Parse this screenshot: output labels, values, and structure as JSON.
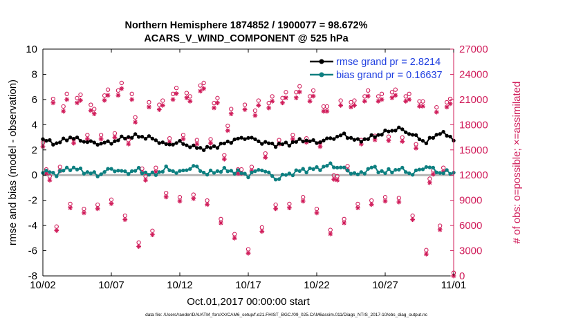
{
  "chart_data": {
    "type": "line",
    "title": "Northern Hemisphere 1874852 / 1900077 = 98.672%",
    "subtitle": "ACARS_V_WIND_COMPONENT @ 525 hPa",
    "xlabel": "Oct.01,2017 00:00:00 start",
    "ylabel_left": "rmse and bias (model - observation)",
    "ylabel_right": "# of obs: o=possible; ×=assimilated",
    "xlim": [
      0,
      30
    ],
    "ylim_left": [
      -8,
      10
    ],
    "ylim_right": [
      0,
      27000
    ],
    "xticks": [
      {
        "value": 1,
        "label": "10/02"
      },
      {
        "value": 6,
        "label": "10/07"
      },
      {
        "value": 11,
        "label": "10/12"
      },
      {
        "value": 16,
        "label": "10/17"
      },
      {
        "value": 21,
        "label": "10/22"
      },
      {
        "value": 26,
        "label": "10/27"
      },
      {
        "value": 31,
        "label": "11/01"
      }
    ],
    "yticks_left": [
      "-8",
      "-6",
      "-4",
      "-2",
      "0",
      "2",
      "4",
      "6",
      "8",
      "10"
    ],
    "yticks_right": [
      "0",
      "3000",
      "6000",
      "9000",
      "12000",
      "15000",
      "18000",
      "21000",
      "24000",
      "27000"
    ],
    "legend": {
      "location": "top-right",
      "rmse_label": "rmse grand pr = 2.8214",
      "bias_label": "bias grand pr = 0.16637"
    },
    "colors": {
      "rmse": "#000000",
      "bias": "#0d7f80",
      "obs": "#d01c5a",
      "legend_text": "#1f3fe0",
      "right_axis": "#d01c5a",
      "zero_line": "#b4b4b4"
    },
    "series": [
      {
        "name": "rmse",
        "axis": "left",
        "color": "#000000",
        "day_anchors": [
          2.8,
          2.5,
          3.0,
          2.7,
          2.5,
          2.6,
          3.0,
          3.1,
          2.9,
          2.4,
          2.6,
          2.2,
          2.1,
          2.4,
          2.8,
          3.0,
          2.6,
          2.4,
          2.5,
          2.8,
          2.6,
          2.9,
          3.2,
          2.7,
          3.0,
          3.4,
          3.7,
          3.2,
          2.6,
          3.4,
          2.9
        ]
      },
      {
        "name": "bias",
        "axis": "left",
        "color": "#0d7f80",
        "day_anchors": [
          0.3,
          0.1,
          0.6,
          0.3,
          0.0,
          0.5,
          0.2,
          0.4,
          0.0,
          0.5,
          0.2,
          0.7,
          0.1,
          0.4,
          0.3,
          0.0,
          0.5,
          -0.3,
          0.1,
          0.4,
          0.5,
          0.8,
          0.5,
          0.0,
          0.6,
          0.2,
          0.5,
          0.1,
          0.7,
          0.2,
          0.2
        ]
      },
      {
        "name": "possible",
        "axis": "right",
        "marker": "o",
        "color": "#d01c5a",
        "points": [
          [
            0.0,
            15500
          ],
          [
            0.25,
            12300
          ],
          [
            0.5,
            11500
          ],
          [
            0.75,
            20700
          ],
          [
            1.0,
            5500
          ],
          [
            1.25,
            12600
          ],
          [
            1.5,
            19800
          ],
          [
            1.75,
            21300
          ],
          [
            2.0,
            8200
          ],
          [
            2.25,
            15900
          ],
          [
            2.5,
            20800
          ],
          [
            2.75,
            21200
          ],
          [
            3.0,
            7600
          ],
          [
            3.25,
            16400
          ],
          [
            3.5,
            20000
          ],
          [
            3.75,
            19500
          ],
          [
            4.0,
            8100
          ],
          [
            4.25,
            16400
          ],
          [
            4.5,
            21100
          ],
          [
            4.75,
            21800
          ],
          [
            5.0,
            8700
          ],
          [
            5.25,
            16600
          ],
          [
            5.5,
            21700
          ],
          [
            5.75,
            22600
          ],
          [
            6.0,
            6800
          ],
          [
            6.25,
            15800
          ],
          [
            6.5,
            21300
          ],
          [
            6.75,
            18500
          ],
          [
            7.0,
            3600
          ],
          [
            7.25,
            12400
          ],
          [
            7.5,
            11500
          ],
          [
            7.75,
            20300
          ],
          [
            8.0,
            5000
          ],
          [
            8.25,
            12500
          ],
          [
            8.5,
            20000
          ],
          [
            8.75,
            20500
          ],
          [
            9.0,
            9500
          ],
          [
            9.25,
            16000
          ],
          [
            9.5,
            21300
          ],
          [
            9.75,
            22000
          ],
          [
            10.0,
            9000
          ],
          [
            10.25,
            16400
          ],
          [
            10.5,
            21400
          ],
          [
            10.75,
            21000
          ],
          [
            11.0,
            9300
          ],
          [
            11.25,
            15800
          ],
          [
            11.5,
            22300
          ],
          [
            11.75,
            22600
          ],
          [
            12.0,
            8600
          ],
          [
            12.25,
            15900
          ],
          [
            12.5,
            20200
          ],
          [
            12.75,
            20800
          ],
          [
            13.0,
            6400
          ],
          [
            13.25,
            14000
          ],
          [
            13.5,
            17500
          ],
          [
            13.75,
            19500
          ],
          [
            14.0,
            4600
          ],
          [
            14.25,
            12300
          ],
          [
            14.5,
            12300
          ],
          [
            14.75,
            20000
          ],
          [
            15.0,
            2800
          ],
          [
            15.25,
            12600
          ],
          [
            15.5,
            19300
          ],
          [
            15.75,
            20500
          ],
          [
            16.0,
            5400
          ],
          [
            16.25,
            14200
          ],
          [
            16.5,
            20200
          ],
          [
            16.75,
            21000
          ],
          [
            17.0,
            8100
          ],
          [
            17.25,
            15800
          ],
          [
            17.5,
            20800
          ],
          [
            17.75,
            21500
          ],
          [
            18.0,
            8200
          ],
          [
            18.25,
            16400
          ],
          [
            18.5,
            21500
          ],
          [
            18.75,
            22200
          ],
          [
            19.0,
            9000
          ],
          [
            19.25,
            16000
          ],
          [
            19.5,
            21000
          ],
          [
            19.75,
            21700
          ],
          [
            20.0,
            7600
          ],
          [
            20.25,
            15500
          ],
          [
            20.5,
            19800
          ],
          [
            20.75,
            19800
          ],
          [
            21.0,
            5100
          ],
          [
            21.25,
            11600
          ],
          [
            21.5,
            11500
          ],
          [
            21.75,
            20500
          ],
          [
            22.0,
            6400
          ],
          [
            22.25,
            12700
          ],
          [
            22.5,
            20300
          ],
          [
            22.75,
            20500
          ],
          [
            23.0,
            8200
          ],
          [
            23.25,
            15800
          ],
          [
            23.5,
            21000
          ],
          [
            23.75,
            21700
          ],
          [
            24.0,
            8600
          ],
          [
            24.25,
            16300
          ],
          [
            24.5,
            21000
          ],
          [
            24.75,
            21300
          ],
          [
            25.0,
            9000
          ],
          [
            25.25,
            16200
          ],
          [
            25.5,
            21500
          ],
          [
            25.75,
            21800
          ],
          [
            26.0,
            8900
          ],
          [
            26.25,
            16100
          ],
          [
            26.5,
            21000
          ],
          [
            26.75,
            21300
          ],
          [
            27.0,
            6800
          ],
          [
            27.25,
            15300
          ],
          [
            27.5,
            20400
          ],
          [
            27.75,
            20400
          ],
          [
            28.0,
            2700
          ],
          [
            28.25,
            11200
          ],
          [
            28.5,
            12200
          ],
          [
            28.75,
            19700
          ],
          [
            29.0,
            5600
          ],
          [
            29.25,
            12500
          ],
          [
            29.5,
            20300
          ],
          [
            29.75,
            20700
          ],
          [
            30.0,
            0
          ]
        ]
      },
      {
        "name": "assimilated",
        "axis": "right",
        "marker": "x",
        "color": "#d01c5a",
        "points": [
          [
            0.0,
            15400
          ],
          [
            0.25,
            12200
          ],
          [
            0.5,
            11400
          ],
          [
            0.75,
            20600
          ],
          [
            1.0,
            5400
          ],
          [
            1.25,
            12500
          ],
          [
            1.5,
            19600
          ],
          [
            1.75,
            21000
          ],
          [
            2.0,
            8100
          ],
          [
            2.25,
            15800
          ],
          [
            2.5,
            20600
          ],
          [
            2.75,
            20900
          ],
          [
            3.0,
            7500
          ],
          [
            3.25,
            16300
          ],
          [
            3.5,
            19700
          ],
          [
            3.75,
            19300
          ],
          [
            4.0,
            8000
          ],
          [
            4.25,
            16300
          ],
          [
            4.5,
            20900
          ],
          [
            4.75,
            21500
          ],
          [
            5.0,
            8600
          ],
          [
            5.25,
            16500
          ],
          [
            5.5,
            21500
          ],
          [
            5.75,
            22300
          ],
          [
            6.0,
            6700
          ],
          [
            6.25,
            15700
          ],
          [
            6.5,
            21000
          ],
          [
            6.75,
            18300
          ],
          [
            7.0,
            3500
          ],
          [
            7.25,
            12300
          ],
          [
            7.5,
            11400
          ],
          [
            7.75,
            20100
          ],
          [
            8.0,
            4900
          ],
          [
            8.25,
            12400
          ],
          [
            8.5,
            19800
          ],
          [
            8.75,
            20300
          ],
          [
            9.0,
            9400
          ],
          [
            9.25,
            15900
          ],
          [
            9.5,
            21000
          ],
          [
            9.75,
            21700
          ],
          [
            10.0,
            8900
          ],
          [
            10.25,
            16300
          ],
          [
            10.5,
            21200
          ],
          [
            10.75,
            20800
          ],
          [
            11.0,
            9200
          ],
          [
            11.25,
            15700
          ],
          [
            11.5,
            22000
          ],
          [
            11.75,
            22300
          ],
          [
            12.0,
            8500
          ],
          [
            12.25,
            15800
          ],
          [
            12.5,
            20000
          ],
          [
            12.75,
            20600
          ],
          [
            13.0,
            6300
          ],
          [
            13.25,
            13900
          ],
          [
            13.5,
            17300
          ],
          [
            13.75,
            19300
          ],
          [
            14.0,
            4500
          ],
          [
            14.25,
            12200
          ],
          [
            14.5,
            12200
          ],
          [
            14.75,
            19800
          ],
          [
            15.0,
            2700
          ],
          [
            15.25,
            12500
          ],
          [
            15.5,
            19100
          ],
          [
            15.75,
            20300
          ],
          [
            16.0,
            5300
          ],
          [
            16.25,
            14100
          ],
          [
            16.5,
            20000
          ],
          [
            16.75,
            20800
          ],
          [
            17.0,
            8000
          ],
          [
            17.25,
            15700
          ],
          [
            17.5,
            20600
          ],
          [
            17.75,
            21200
          ],
          [
            18.0,
            8100
          ],
          [
            18.25,
            16300
          ],
          [
            18.5,
            21200
          ],
          [
            18.75,
            21900
          ],
          [
            19.0,
            8900
          ],
          [
            19.25,
            15900
          ],
          [
            19.5,
            20800
          ],
          [
            19.75,
            21400
          ],
          [
            20.0,
            7500
          ],
          [
            20.25,
            15400
          ],
          [
            20.5,
            19600
          ],
          [
            20.75,
            19600
          ],
          [
            21.0,
            5000
          ],
          [
            21.25,
            11500
          ],
          [
            21.5,
            11400
          ],
          [
            21.75,
            20300
          ],
          [
            22.0,
            6300
          ],
          [
            22.25,
            12600
          ],
          [
            22.5,
            20100
          ],
          [
            22.75,
            20300
          ],
          [
            23.0,
            8100
          ],
          [
            23.25,
            15700
          ],
          [
            23.5,
            20800
          ],
          [
            23.75,
            21400
          ],
          [
            24.0,
            8500
          ],
          [
            24.25,
            16200
          ],
          [
            24.5,
            20800
          ],
          [
            24.75,
            21000
          ],
          [
            25.0,
            8900
          ],
          [
            25.25,
            16100
          ],
          [
            25.5,
            21200
          ],
          [
            25.75,
            21500
          ],
          [
            26.0,
            8800
          ],
          [
            26.25,
            16000
          ],
          [
            26.5,
            20800
          ],
          [
            26.75,
            21000
          ],
          [
            27.0,
            6700
          ],
          [
            27.25,
            15200
          ],
          [
            27.5,
            20200
          ],
          [
            27.75,
            20200
          ],
          [
            28.0,
            2600
          ],
          [
            28.25,
            11100
          ],
          [
            28.5,
            12100
          ],
          [
            28.75,
            19500
          ],
          [
            29.0,
            5500
          ],
          [
            29.25,
            12400
          ],
          [
            29.5,
            20100
          ],
          [
            29.75,
            20500
          ],
          [
            30.0,
            0
          ]
        ]
      }
    ]
  },
  "footer": "data file: /Users/raeder/DAI/ATM_forcXX/CAM6_setup/f.e21.FHIST_BGC.f09_025.CAM6assim.011/Diags_NTrS_2017-10/obs_diag_output.nc"
}
